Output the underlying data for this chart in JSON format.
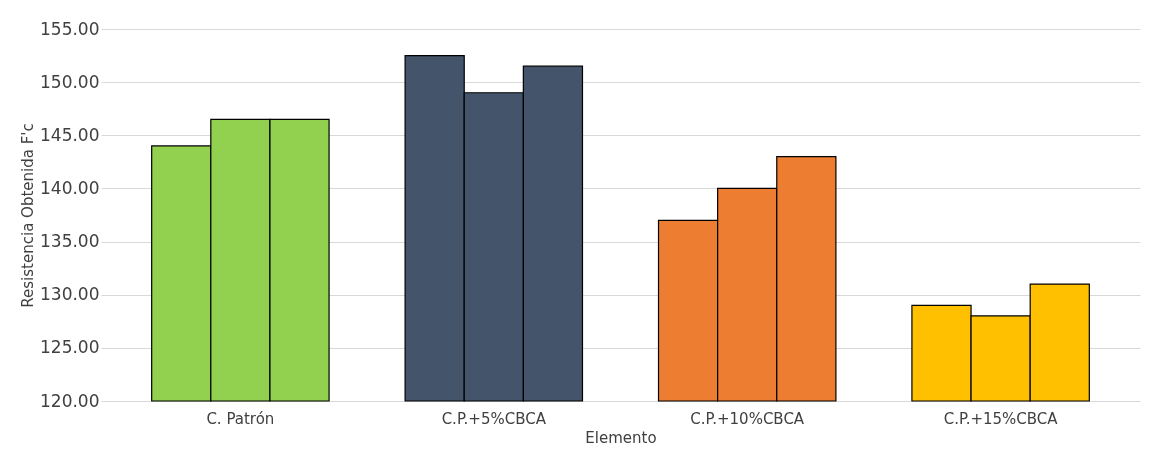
{
  "chart_data": {
    "type": "bar",
    "xlabel": "Elemento",
    "ylabel": "Resistencia Obtenida F'c",
    "categories": [
      "C. Patrón",
      "C.P.+5%CBCA",
      "C.P.+10%CBCA",
      "C.P.+15%CBCA"
    ],
    "series": [
      {
        "colors": [
          "#92d050",
          "#44546a",
          "#ed7d31",
          "#ffc000"
        ],
        "values": [
          144,
          152.5,
          137,
          129
        ]
      },
      {
        "colors": [
          "#92d050",
          "#44546a",
          "#ed7d31",
          "#ffc000"
        ],
        "values": [
          146.5,
          149,
          140,
          128
        ]
      },
      {
        "colors": [
          "#92d050",
          "#44546a",
          "#ed7d31",
          "#ffc000"
        ],
        "values": [
          146.5,
          151.5,
          143,
          131
        ]
      }
    ],
    "ylim": [
      120,
      155
    ],
    "yticks": [
      {
        "value": 120,
        "label": "120.00"
      },
      {
        "value": 125,
        "label": "125.00"
      },
      {
        "value": 130,
        "label": "130.00"
      },
      {
        "value": 135,
        "label": "135.00"
      },
      {
        "value": 140,
        "label": "140.00"
      },
      {
        "value": 145,
        "label": "145.00"
      },
      {
        "value": 150,
        "label": "150.00"
      },
      {
        "value": 155,
        "label": "155.00"
      }
    ],
    "grid": "y"
  }
}
